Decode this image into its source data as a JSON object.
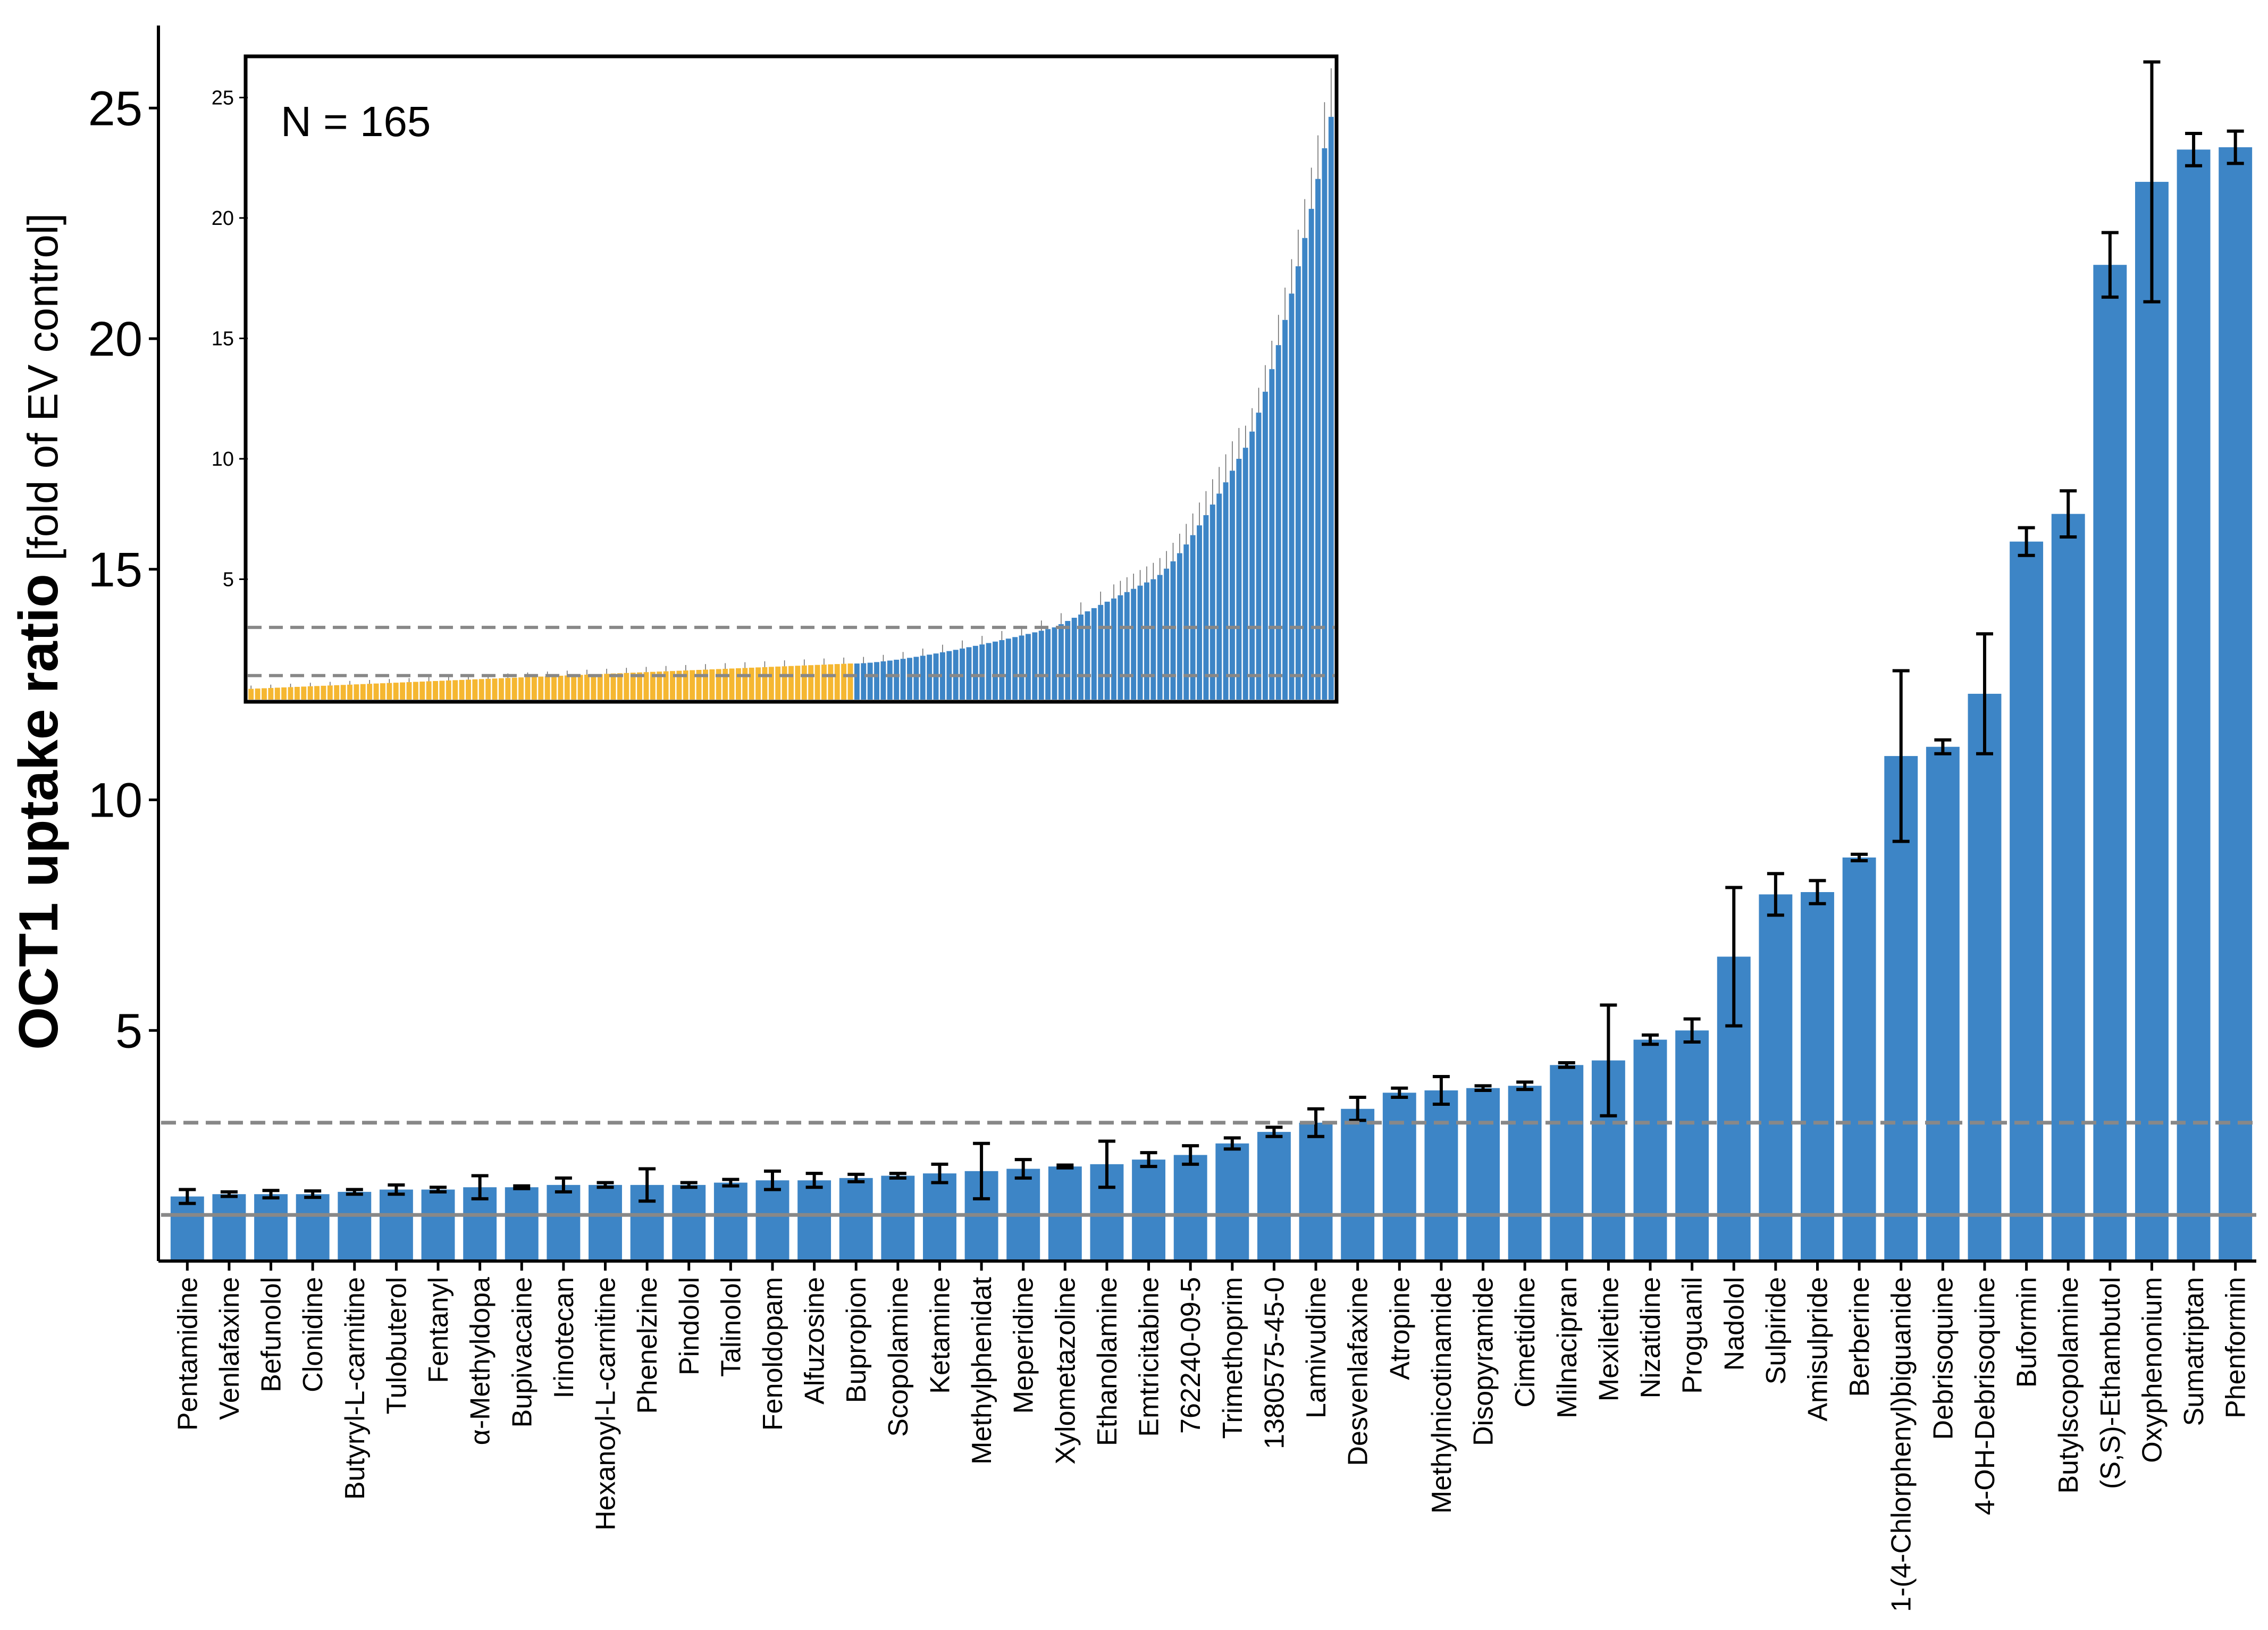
{
  "chart_data": [
    {
      "type": "bar",
      "ylabel_bold": "OCT1 uptake ratio",
      "ylabel_rest": "[fold of EV control]",
      "ylim": [
        0,
        27
      ],
      "yticks": [
        5,
        10,
        15,
        20,
        25
      ],
      "reference_lines": [
        {
          "y": 1,
          "style": "solid"
        },
        {
          "y": 3,
          "style": "dashed"
        }
      ],
      "bar_color": "#3d85c6",
      "grid": false,
      "categories": [
        "Pentamidine",
        "Venlafaxine",
        "Befunolol",
        "Clonidine",
        "Butyryl-L-carnitine",
        "Tulobuterol",
        "Fentanyl",
        "α-Methyldopa",
        "Bupivacaine",
        "Irinotecan",
        "Hexanoyl-L-carnitine",
        "Phenelzine",
        "Pindolol",
        "Talinolol",
        "Fenoldopam",
        "Alfuzosine",
        "Bupropion",
        "Scopolamine",
        "Ketamine",
        "Methylphenidat",
        "Meperidine",
        "Xylometazoline",
        "Ethanolamine",
        "Emtricitabine",
        "762240-09-5",
        "Trimethoprim",
        "1380575-45-0",
        "Lamivudine",
        "Desvenlafaxine",
        "Atropine",
        "Methylnicotinamide",
        "Disopyramide",
        "Cimetidine",
        "Milnacipran",
        "Mexiletine",
        "Nizatidine",
        "Proguanil",
        "Nadolol",
        "Sulpiride",
        "Amisulpride",
        "Berberine",
        "1-(4-Chlorphenyl)biguanide",
        "Debrisoquine",
        "4-OH-Debrisoquine",
        "Buformin",
        "Butylscopolamine",
        "(S,S)-Ethambutol",
        "Oxyphenonium",
        "Sumatriptan",
        "Phenformin"
      ],
      "values": [
        1.4,
        1.45,
        1.45,
        1.45,
        1.5,
        1.55,
        1.55,
        1.6,
        1.6,
        1.65,
        1.65,
        1.65,
        1.65,
        1.7,
        1.75,
        1.75,
        1.8,
        1.85,
        1.9,
        1.95,
        2.0,
        2.05,
        2.1,
        2.2,
        2.3,
        2.55,
        2.8,
        3.0,
        3.3,
        3.65,
        3.7,
        3.75,
        3.8,
        4.25,
        4.35,
        4.8,
        5.0,
        6.6,
        7.95,
        8.0,
        8.75,
        10.95,
        11.15,
        12.3,
        15.6,
        16.2,
        21.6,
        23.4,
        24.1,
        24.15
      ],
      "errors": [
        0.15,
        0.05,
        0.08,
        0.07,
        0.05,
        0.1,
        0.05,
        0.25,
        0.03,
        0.15,
        0.05,
        0.35,
        0.05,
        0.07,
        0.2,
        0.15,
        0.08,
        0.05,
        0.2,
        0.6,
        0.2,
        0.03,
        0.5,
        0.15,
        0.2,
        0.12,
        0.1,
        0.3,
        0.25,
        0.1,
        0.3,
        0.05,
        0.08,
        0.05,
        1.2,
        0.1,
        0.25,
        1.5,
        0.45,
        0.25,
        0.07,
        1.85,
        0.15,
        1.3,
        0.3,
        0.5,
        0.7,
        2.6,
        0.35,
        0.35
      ]
    },
    {
      "type": "bar",
      "annotation": "N = 165",
      "ylim": [
        0,
        27
      ],
      "yticks": [
        5,
        10,
        15,
        20,
        25
      ],
      "reference_lines": [
        {
          "y": 1,
          "style": "dashed"
        },
        {
          "y": 3,
          "style": "dashed"
        }
      ],
      "colors": {
        "below_threshold": "#f5b731",
        "above_threshold": "#3d85c6"
      },
      "n_bars": 165,
      "n_below_threshold": 92
    }
  ]
}
